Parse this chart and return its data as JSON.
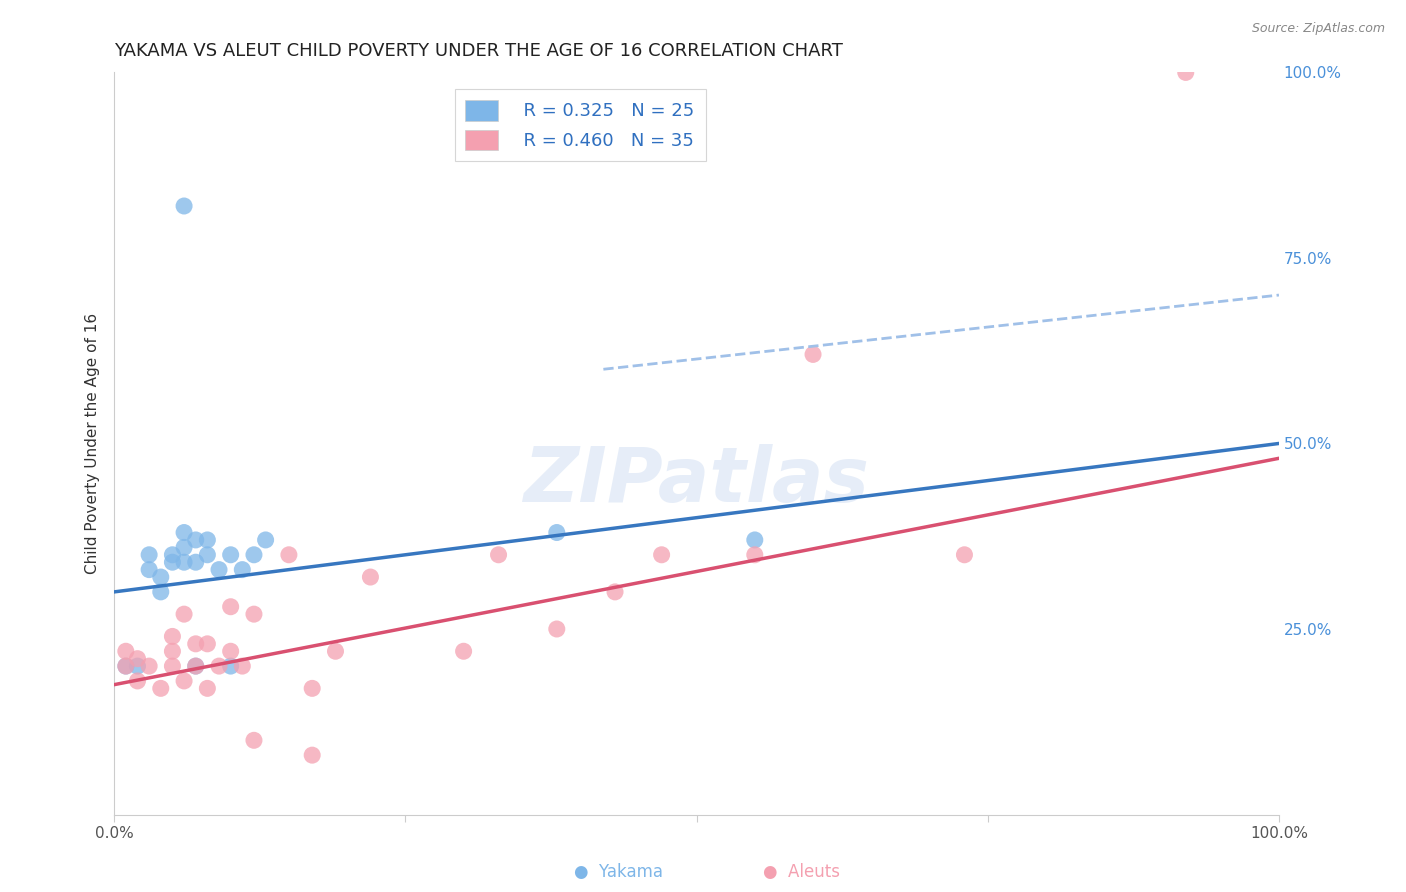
{
  "title": "YAKAMA VS ALEUT CHILD POVERTY UNDER THE AGE OF 16 CORRELATION CHART",
  "source": "Source: ZipAtlas.com",
  "ylabel": "Child Poverty Under the Age of 16",
  "xlim": [
    0,
    1.0
  ],
  "ylim": [
    0,
    1.0
  ],
  "xticks": [
    0.0,
    0.25,
    0.5,
    0.75,
    1.0
  ],
  "xticklabels": [
    "0.0%",
    "",
    "",
    "",
    "100.0%"
  ],
  "right_yticks": [
    0.0,
    0.25,
    0.5,
    0.75,
    1.0
  ],
  "right_yticklabels": [
    "",
    "25.0%",
    "50.0%",
    "75.0%",
    "100.0%"
  ],
  "legend_r_yakama": "R = 0.325",
  "legend_n_yakama": "N = 25",
  "legend_r_aleut": "R = 0.460",
  "legend_n_aleut": "N = 35",
  "yakama_color": "#7EB6E8",
  "aleut_color": "#F4A0B0",
  "yakama_line_color": "#3777C0",
  "aleut_line_color": "#D95070",
  "dashed_line_color": "#A0C0E8",
  "watermark": "ZIPatlas",
  "background_color": "#FFFFFF",
  "grid_color": "#CCCCCC",
  "title_fontsize": 13,
  "axis_label_fontsize": 11,
  "tick_fontsize": 11,
  "yakama_x": [
    0.01,
    0.02,
    0.03,
    0.03,
    0.04,
    0.04,
    0.05,
    0.05,
    0.06,
    0.06,
    0.06,
    0.07,
    0.07,
    0.07,
    0.08,
    0.08,
    0.09,
    0.1,
    0.1,
    0.11,
    0.12,
    0.13,
    0.38,
    0.55,
    0.06
  ],
  "yakama_y": [
    0.2,
    0.2,
    0.33,
    0.35,
    0.3,
    0.32,
    0.34,
    0.35,
    0.34,
    0.36,
    0.38,
    0.34,
    0.37,
    0.2,
    0.35,
    0.37,
    0.33,
    0.35,
    0.2,
    0.33,
    0.35,
    0.37,
    0.38,
    0.37,
    0.82
  ],
  "aleut_x": [
    0.01,
    0.01,
    0.02,
    0.02,
    0.03,
    0.04,
    0.05,
    0.05,
    0.05,
    0.06,
    0.06,
    0.07,
    0.07,
    0.08,
    0.08,
    0.09,
    0.1,
    0.1,
    0.11,
    0.12,
    0.12,
    0.15,
    0.17,
    0.17,
    0.19,
    0.22,
    0.3,
    0.33,
    0.38,
    0.43,
    0.47,
    0.55,
    0.6,
    0.73,
    0.92
  ],
  "aleut_y": [
    0.2,
    0.22,
    0.18,
    0.21,
    0.2,
    0.17,
    0.2,
    0.22,
    0.24,
    0.18,
    0.27,
    0.2,
    0.23,
    0.17,
    0.23,
    0.2,
    0.22,
    0.28,
    0.2,
    0.1,
    0.27,
    0.35,
    0.17,
    0.08,
    0.22,
    0.32,
    0.22,
    0.35,
    0.25,
    0.3,
    0.35,
    0.35,
    0.62,
    0.35,
    1.0
  ],
  "yakama_line_x0": 0.0,
  "yakama_line_y0": 0.3,
  "yakama_line_x1": 1.0,
  "yakama_line_y1": 0.5,
  "aleut_line_x0": 0.0,
  "aleut_line_y0": 0.175,
  "aleut_line_x1": 1.0,
  "aleut_line_y1": 0.48,
  "dashed_line_x0": 0.42,
  "dashed_line_y0": 0.6,
  "dashed_line_x1": 1.0,
  "dashed_line_y1": 0.7
}
